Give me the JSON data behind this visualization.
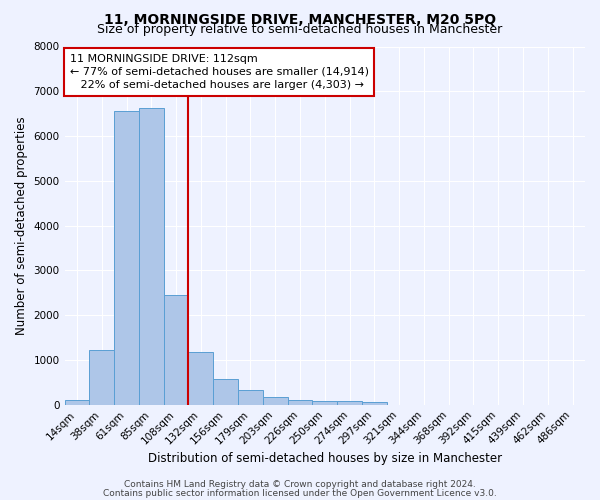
{
  "title": "11, MORNINGSIDE DRIVE, MANCHESTER, M20 5PQ",
  "subtitle": "Size of property relative to semi-detached houses in Manchester",
  "xlabel": "Distribution of semi-detached houses by size in Manchester",
  "ylabel": "Number of semi-detached properties",
  "bar_labels": [
    "14sqm",
    "38sqm",
    "61sqm",
    "85sqm",
    "108sqm",
    "132sqm",
    "156sqm",
    "179sqm",
    "203sqm",
    "226sqm",
    "250sqm",
    "274sqm",
    "297sqm",
    "321sqm",
    "344sqm",
    "368sqm",
    "392sqm",
    "415sqm",
    "439sqm",
    "462sqm",
    "486sqm"
  ],
  "bar_values": [
    100,
    1220,
    6550,
    6620,
    2450,
    1180,
    570,
    340,
    175,
    110,
    85,
    85,
    60,
    0,
    0,
    0,
    0,
    0,
    0,
    0,
    0
  ],
  "bar_color": "#aec6e8",
  "bar_edge_color": "#5a9fd4",
  "property_line_color": "#cc0000",
  "annotation_line1": "11 MORNINGSIDE DRIVE: 112sqm",
  "annotation_line2": "← 77% of semi-detached houses are smaller (14,914)",
  "annotation_line3": "   22% of semi-detached houses are larger (4,303) →",
  "annotation_box_color": "#ffffff",
  "annotation_box_edge_color": "#cc0000",
  "ylim": [
    0,
    8000
  ],
  "footer_line1": "Contains HM Land Registry data © Crown copyright and database right 2024.",
  "footer_line2": "Contains public sector information licensed under the Open Government Licence v3.0.",
  "background_color": "#eef2ff",
  "grid_color": "#ffffff",
  "title_fontsize": 10,
  "subtitle_fontsize": 9,
  "axis_label_fontsize": 8.5,
  "tick_fontsize": 7.5,
  "annotation_fontsize": 8,
  "footer_fontsize": 6.5
}
